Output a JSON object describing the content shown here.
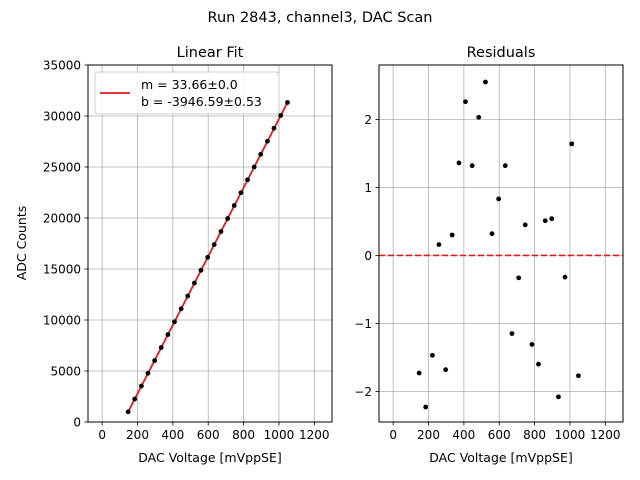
{
  "figure_title": "Run 2843, channel3, DAC Scan",
  "chart_data": [
    {
      "type": "scatter",
      "title": "Linear Fit",
      "xlabel": "DAC Voltage [mVppSE]",
      "ylabel": "ADC Counts",
      "xlim": [
        -80,
        1300
      ],
      "ylim": [
        0,
        35000
      ],
      "xticks": [
        0,
        200,
        400,
        600,
        800,
        1000,
        1200
      ],
      "yticks": [
        0,
        5000,
        10000,
        15000,
        20000,
        25000,
        30000,
        35000
      ],
      "grid": true,
      "legend_position": "top-left",
      "colors": {
        "points": "#000000",
        "fit": "#e41a1c"
      },
      "fit": {
        "slope": 33.66,
        "intercept": -3946.59,
        "x_range": [
          147,
          1048
        ]
      },
      "legend": [
        "m = 33.66±0.0",
        "b = -3946.59±0.53"
      ],
      "series": [
        {
          "x": [
            147,
            184,
            222,
            259,
            297,
            334,
            372,
            409,
            447,
            484,
            522,
            559,
            597,
            634,
            672,
            710,
            747,
            785,
            822,
            860,
            897,
            935,
            972,
            1010,
            1048
          ],
          "y": [
            1000,
            2250,
            3525,
            4775,
            6025,
            7300,
            8575,
            9825,
            11100,
            12350,
            13625,
            14875,
            16150,
            17400,
            18675,
            19950,
            21225,
            22475,
            23750,
            25000,
            26250,
            27525,
            28800,
            30050,
            31325
          ]
        }
      ]
    },
    {
      "type": "scatter",
      "title": "Residuals",
      "xlabel": "DAC Voltage [mVppSE]",
      "ylabel": "",
      "xlim": [
        -80,
        1300
      ],
      "ylim": [
        -2.45,
        2.8
      ],
      "xticks": [
        0,
        200,
        400,
        600,
        800,
        1000,
        1200
      ],
      "yticks": [
        -2,
        -1,
        0,
        1,
        2
      ],
      "grid": true,
      "reference_line": {
        "y": 0,
        "style": "dashed",
        "color": "#e41a1c"
      },
      "colors": {
        "points": "#000000"
      },
      "series": [
        {
          "x": [
            147,
            184,
            222,
            259,
            297,
            334,
            372,
            409,
            447,
            484,
            522,
            559,
            597,
            634,
            672,
            710,
            747,
            785,
            822,
            860,
            897,
            935,
            972,
            1010,
            1048
          ],
          "y": [
            -1.73,
            -2.23,
            -1.47,
            0.16,
            -1.68,
            0.3,
            1.36,
            2.26,
            1.32,
            2.03,
            2.55,
            0.32,
            0.83,
            1.32,
            -1.15,
            -0.33,
            0.45,
            -1.31,
            -1.6,
            0.51,
            0.54,
            -2.08,
            -0.32,
            1.64,
            -1.77
          ]
        }
      ]
    }
  ]
}
